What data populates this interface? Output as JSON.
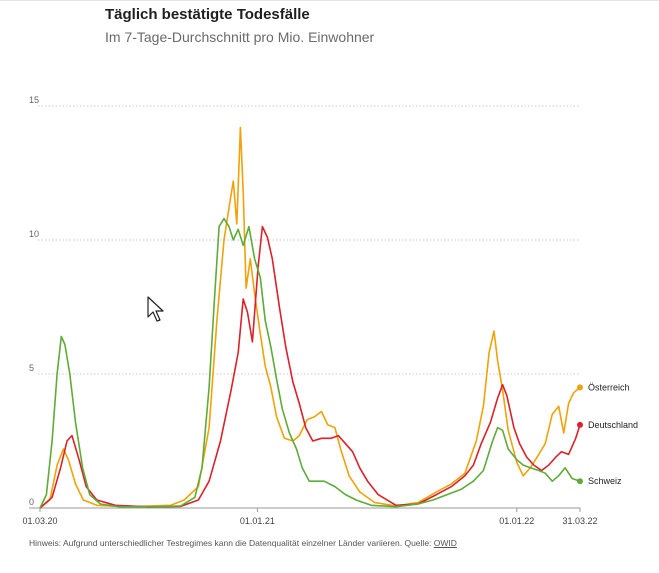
{
  "header": {
    "title": "Täglich bestätigte Todesfälle",
    "subtitle": "Im 7-Tage-Durchschnitt pro Mio. Einwohner"
  },
  "footer": {
    "note": "Hinweis: Aufgrund unterschiedlicher Testregimes kann die Datenqualität einzelner Länder variieren. Quelle: ",
    "source_link": "OWID"
  },
  "chart_data": {
    "type": "line",
    "title": "Täglich bestätigte Todesfälle",
    "subtitle": "Im 7-Tage-Durchschnitt pro Mio. Einwohner",
    "x_range": [
      "2020-03-01",
      "2022-03-31"
    ],
    "x_ticks": [
      "01.03.20",
      "01.01.21",
      "01.01.22",
      "31.03.22"
    ],
    "ylim": [
      0,
      15
    ],
    "y_ticks": [
      0,
      5,
      10,
      15
    ],
    "grid": "horizontal dotted",
    "legend": "end-of-line labels",
    "series": [
      {
        "name": "Österreich",
        "color": "#f0a20a",
        "points": [
          [
            "2020-03-01",
            0
          ],
          [
            "2020-03-15",
            0.3
          ],
          [
            "2020-03-25",
            1.6
          ],
          [
            "2020-04-03",
            2.2
          ],
          [
            "2020-04-10",
            1.8
          ],
          [
            "2020-04-20",
            0.9
          ],
          [
            "2020-05-01",
            0.3
          ],
          [
            "2020-05-20",
            0.1
          ],
          [
            "2020-07-01",
            0.05
          ],
          [
            "2020-09-01",
            0.1
          ],
          [
            "2020-09-20",
            0.3
          ],
          [
            "2020-10-10",
            0.8
          ],
          [
            "2020-10-25",
            3
          ],
          [
            "2020-11-05",
            7
          ],
          [
            "2020-11-15",
            10
          ],
          [
            "2020-11-22",
            11.2
          ],
          [
            "2020-11-28",
            12.2
          ],
          [
            "2020-12-03",
            10.6
          ],
          [
            "2020-12-08",
            14.2
          ],
          [
            "2020-12-12",
            11.8
          ],
          [
            "2020-12-16",
            8.2
          ],
          [
            "2020-12-22",
            9.3
          ],
          [
            "2020-12-28",
            8
          ],
          [
            "2021-01-05",
            6.5
          ],
          [
            "2021-01-12",
            5.3
          ],
          [
            "2021-01-20",
            4.5
          ],
          [
            "2021-01-28",
            3.4
          ],
          [
            "2021-02-08",
            2.6
          ],
          [
            "2021-02-20",
            2.5
          ],
          [
            "2021-03-01",
            2.7
          ],
          [
            "2021-03-12",
            3.3
          ],
          [
            "2021-03-22",
            3.4
          ],
          [
            "2021-04-01",
            3.6
          ],
          [
            "2021-04-10",
            3.1
          ],
          [
            "2021-04-20",
            3.0
          ],
          [
            "2021-04-28",
            2.2
          ],
          [
            "2021-05-10",
            1.2
          ],
          [
            "2021-05-25",
            0.6
          ],
          [
            "2021-06-15",
            0.2
          ],
          [
            "2021-07-15",
            0.08
          ],
          [
            "2021-08-15",
            0.2
          ],
          [
            "2021-09-10",
            0.6
          ],
          [
            "2021-10-01",
            0.9
          ],
          [
            "2021-10-20",
            1.3
          ],
          [
            "2021-11-05",
            2.5
          ],
          [
            "2021-11-15",
            3.8
          ],
          [
            "2021-11-23",
            5.8
          ],
          [
            "2021-11-30",
            6.6
          ],
          [
            "2021-12-05",
            5.5
          ],
          [
            "2021-12-12",
            4.4
          ],
          [
            "2021-12-20",
            2.9
          ],
          [
            "2022-01-01",
            1.7
          ],
          [
            "2022-01-10",
            1.2
          ],
          [
            "2022-01-20",
            1.5
          ],
          [
            "2022-02-01",
            2.0
          ],
          [
            "2022-02-10",
            2.4
          ],
          [
            "2022-02-20",
            3.5
          ],
          [
            "2022-03-01",
            3.8
          ],
          [
            "2022-03-08",
            2.8
          ],
          [
            "2022-03-15",
            3.9
          ],
          [
            "2022-03-22",
            4.3
          ],
          [
            "2022-03-31",
            4.5
          ]
        ]
      },
      {
        "name": "Deutschland",
        "color": "#d9222a",
        "points": [
          [
            "2020-03-01",
            0
          ],
          [
            "2020-03-18",
            0.4
          ],
          [
            "2020-03-30",
            1.5
          ],
          [
            "2020-04-08",
            2.5
          ],
          [
            "2020-04-15",
            2.7
          ],
          [
            "2020-04-25",
            1.8
          ],
          [
            "2020-05-05",
            0.8
          ],
          [
            "2020-05-20",
            0.3
          ],
          [
            "2020-06-15",
            0.1
          ],
          [
            "2020-08-01",
            0.04
          ],
          [
            "2020-09-15",
            0.06
          ],
          [
            "2020-10-10",
            0.3
          ],
          [
            "2020-10-25",
            1.0
          ],
          [
            "2020-11-10",
            2.5
          ],
          [
            "2020-11-25",
            4.4
          ],
          [
            "2020-12-05",
            5.8
          ],
          [
            "2020-12-12",
            7.8
          ],
          [
            "2020-12-18",
            7.3
          ],
          [
            "2020-12-25",
            6.2
          ],
          [
            "2021-01-02",
            9.0
          ],
          [
            "2021-01-08",
            10.5
          ],
          [
            "2021-01-15",
            10.1
          ],
          [
            "2021-01-22",
            9.3
          ],
          [
            "2021-02-01",
            7.5
          ],
          [
            "2021-02-10",
            6.0
          ],
          [
            "2021-02-20",
            4.7
          ],
          [
            "2021-03-01",
            3.9
          ],
          [
            "2021-03-10",
            3.0
          ],
          [
            "2021-03-20",
            2.5
          ],
          [
            "2021-04-01",
            2.6
          ],
          [
            "2021-04-15",
            2.6
          ],
          [
            "2021-04-25",
            2.7
          ],
          [
            "2021-05-05",
            2.4
          ],
          [
            "2021-05-15",
            2.1
          ],
          [
            "2021-05-25",
            1.5
          ],
          [
            "2021-06-05",
            1.0
          ],
          [
            "2021-06-20",
            0.5
          ],
          [
            "2021-07-15",
            0.1
          ],
          [
            "2021-08-15",
            0.15
          ],
          [
            "2021-09-10",
            0.5
          ],
          [
            "2021-10-01",
            0.8
          ],
          [
            "2021-10-20",
            1.2
          ],
          [
            "2021-11-01",
            1.6
          ],
          [
            "2021-11-12",
            2.4
          ],
          [
            "2021-11-25",
            3.2
          ],
          [
            "2021-12-05",
            4.1
          ],
          [
            "2021-12-12",
            4.6
          ],
          [
            "2021-12-18",
            4.2
          ],
          [
            "2021-12-28",
            3.0
          ],
          [
            "2022-01-05",
            2.4
          ],
          [
            "2022-01-15",
            1.9
          ],
          [
            "2022-01-25",
            1.6
          ],
          [
            "2022-02-05",
            1.4
          ],
          [
            "2022-02-15",
            1.6
          ],
          [
            "2022-02-25",
            1.9
          ],
          [
            "2022-03-05",
            2.1
          ],
          [
            "2022-03-15",
            2.0
          ],
          [
            "2022-03-25",
            2.6
          ],
          [
            "2022-03-31",
            3.1
          ]
        ]
      },
      {
        "name": "Schweiz",
        "color": "#5fab38",
        "points": [
          [
            "2020-03-01",
            0
          ],
          [
            "2020-03-10",
            0.5
          ],
          [
            "2020-03-18",
            2.5
          ],
          [
            "2020-03-25",
            5.0
          ],
          [
            "2020-03-31",
            6.4
          ],
          [
            "2020-04-05",
            6.1
          ],
          [
            "2020-04-12",
            5.0
          ],
          [
            "2020-04-20",
            3.2
          ],
          [
            "2020-04-30",
            1.5
          ],
          [
            "2020-05-10",
            0.5
          ],
          [
            "2020-05-25",
            0.15
          ],
          [
            "2020-06-20",
            0.05
          ],
          [
            "2020-08-15",
            0.05
          ],
          [
            "2020-09-15",
            0.08
          ],
          [
            "2020-10-05",
            0.4
          ],
          [
            "2020-10-15",
            1.5
          ],
          [
            "2020-10-25",
            4.5
          ],
          [
            "2020-11-02",
            8.0
          ],
          [
            "2020-11-08",
            10.5
          ],
          [
            "2020-11-15",
            10.8
          ],
          [
            "2020-11-22",
            10.5
          ],
          [
            "2020-11-28",
            10.0
          ],
          [
            "2020-12-05",
            10.4
          ],
          [
            "2020-12-12",
            9.8
          ],
          [
            "2020-12-20",
            10.5
          ],
          [
            "2020-12-28",
            9.3
          ],
          [
            "2021-01-05",
            8.6
          ],
          [
            "2021-01-12",
            7.0
          ],
          [
            "2021-01-20",
            6.0
          ],
          [
            "2021-01-28",
            4.8
          ],
          [
            "2021-02-05",
            3.7
          ],
          [
            "2021-02-15",
            2.8
          ],
          [
            "2021-02-25",
            2.2
          ],
          [
            "2021-03-05",
            1.5
          ],
          [
            "2021-03-15",
            1.0
          ],
          [
            "2021-03-25",
            1.0
          ],
          [
            "2021-04-05",
            1.0
          ],
          [
            "2021-04-20",
            0.8
          ],
          [
            "2021-05-05",
            0.5
          ],
          [
            "2021-05-20",
            0.3
          ],
          [
            "2021-06-10",
            0.1
          ],
          [
            "2021-07-15",
            0.05
          ],
          [
            "2021-08-15",
            0.15
          ],
          [
            "2021-09-05",
            0.3
          ],
          [
            "2021-09-25",
            0.5
          ],
          [
            "2021-10-15",
            0.7
          ],
          [
            "2021-11-01",
            1.0
          ],
          [
            "2021-11-15",
            1.4
          ],
          [
            "2021-11-28",
            2.5
          ],
          [
            "2021-12-05",
            3.0
          ],
          [
            "2021-12-12",
            2.9
          ],
          [
            "2021-12-20",
            2.2
          ],
          [
            "2022-01-01",
            1.8
          ],
          [
            "2022-01-10",
            1.6
          ],
          [
            "2022-01-20",
            1.5
          ],
          [
            "2022-02-01",
            1.4
          ],
          [
            "2022-02-10",
            1.3
          ],
          [
            "2022-02-20",
            1.0
          ],
          [
            "2022-03-01",
            1.2
          ],
          [
            "2022-03-10",
            1.5
          ],
          [
            "2022-03-20",
            1.1
          ],
          [
            "2022-03-31",
            1.0
          ]
        ]
      }
    ]
  }
}
